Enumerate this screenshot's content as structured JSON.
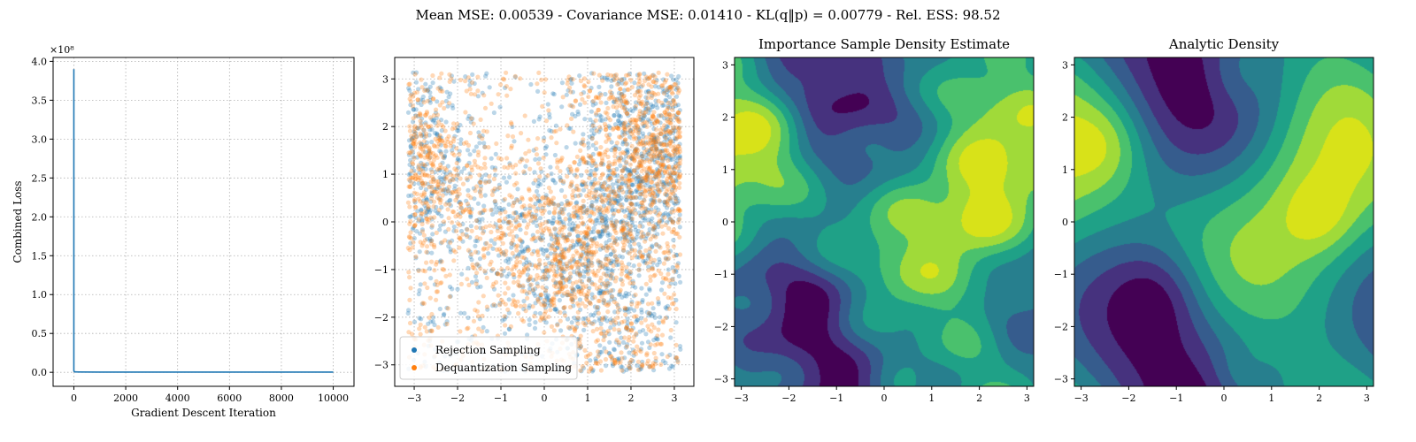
{
  "figure": {
    "suptitle": "Mean MSE: 0.00539 - Covariance MSE: 0.01410 - KL(q‖p) = 0.00779 - Rel. ESS: 98.52"
  },
  "chart_data": [
    {
      "type": "line",
      "title": "",
      "xlabel": "Gradient Descent Iteration",
      "ylabel": "Combined Loss",
      "y_scale_label": "×10⁸",
      "xlim": [
        -800,
        10800
      ],
      "ylim": [
        -0.18,
        4.05
      ],
      "x_ticks": [
        "0",
        "2000",
        "4000",
        "6000",
        "8000",
        "10000"
      ],
      "y_ticks": [
        "0.0",
        "0.5",
        "1.0",
        "1.5",
        "2.0",
        "2.5",
        "3.0",
        "3.5",
        "4.0"
      ],
      "grid": true,
      "series": [
        {
          "color": "#1f77b4",
          "x": [
            0,
            0,
            10,
            50,
            200,
            1000,
            3000,
            6000,
            10000
          ],
          "y": [
            3.9,
            0.02,
            0.01,
            0.005,
            0.004,
            0.003,
            0.003,
            0.003,
            0.003
          ]
        }
      ]
    },
    {
      "type": "scatter",
      "title": "",
      "xlim": [
        -3.45,
        3.45
      ],
      "ylim": [
        -3.45,
        3.45
      ],
      "x_ticks": [
        "−3",
        "−2",
        "−1",
        "0",
        "1",
        "2",
        "3"
      ],
      "y_ticks": [
        "−3",
        "−2",
        "−1",
        "0",
        "1",
        "2",
        "3"
      ],
      "grid": true,
      "point_domain": [
        -3.14,
        3.14
      ],
      "legend_position": "lower-left",
      "series": [
        {
          "name": "Rejection Sampling",
          "color": "#1f77b4",
          "alpha": 0.3
        },
        {
          "name": "Dequantization Sampling",
          "color": "#ff7f0e",
          "alpha": 0.3
        }
      ]
    },
    {
      "type": "heatmap",
      "title": "Importance Sample Density Estimate",
      "xlim": [
        -3.14159,
        3.14159
      ],
      "ylim": [
        -3.14159,
        3.14159
      ],
      "x_ticks": [
        "−3",
        "−2",
        "−1",
        "0",
        "1",
        "2",
        "3"
      ],
      "y_ticks": [
        "−3",
        "−2",
        "−1",
        "0",
        "1",
        "2",
        "3"
      ],
      "colormap": [
        "#440154",
        "#46327e",
        "#365c8d",
        "#277f8e",
        "#1fa187",
        "#4ac16d",
        "#a0da39",
        "#d8e219"
      ],
      "noisy": true
    },
    {
      "type": "heatmap",
      "title": "Analytic Density",
      "xlim": [
        -3.14159,
        3.14159
      ],
      "ylim": [
        -3.14159,
        3.14159
      ],
      "x_ticks": [
        "−3",
        "−2",
        "−1",
        "0",
        "1",
        "2",
        "3"
      ],
      "y_ticks": [
        "−3",
        "−2",
        "−1",
        "0",
        "1",
        "2",
        "3"
      ],
      "colormap": [
        "#440154",
        "#46327e",
        "#365c8d",
        "#277f8e",
        "#1fa187",
        "#4ac16d",
        "#a0da39",
        "#d8e219"
      ],
      "noisy": false
    }
  ]
}
